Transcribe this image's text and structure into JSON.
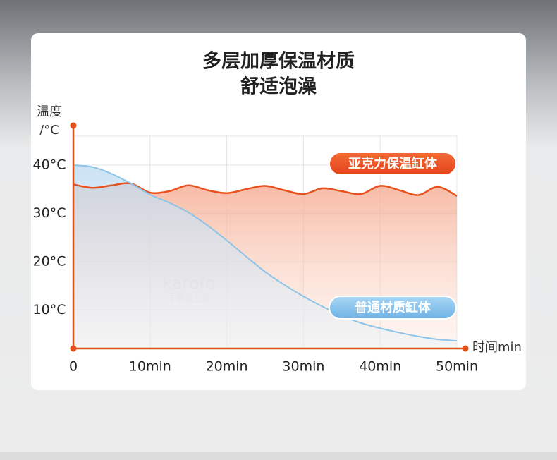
{
  "chart_data": {
    "type": "line",
    "title": "多层加厚保温材质",
    "subtitle": "舒适泡澡",
    "ylabel": [
      "温度",
      "/°C"
    ],
    "xlabel": "时间min",
    "watermark": [
      "karofo",
      "卡罗法卫浴"
    ],
    "x": [
      0,
      2.5,
      5,
      7.5,
      10,
      12.5,
      15,
      17.5,
      20,
      22.5,
      25,
      27.5,
      30,
      32.5,
      35,
      37.5,
      40,
      42.5,
      45,
      47.5,
      50
    ],
    "series": [
      {
        "name": "亚克力保温缸体",
        "color": "#e8501e",
        "values": [
          36,
          35.3,
          35.8,
          36.2,
          34.3,
          34.6,
          35.8,
          34.8,
          34.2,
          35,
          35.7,
          34.8,
          34.0,
          35.2,
          34.6,
          34.0,
          35.7,
          34.8,
          33.8,
          35.5,
          33.6
        ]
      },
      {
        "name": "普通材质缸体",
        "color": "#8cc4e8",
        "values": [
          40,
          39.6,
          38.2,
          36.2,
          33.9,
          32.2,
          30.2,
          27.5,
          24.4,
          21.1,
          17.9,
          15.2,
          12.8,
          10.7,
          8.8,
          7.3,
          6.2,
          5.3,
          4.5,
          3.9,
          3.6
        ]
      }
    ],
    "xlim": [
      0,
      50
    ],
    "xticks": [
      0,
      {
        "value": 10,
        "label": "10min"
      },
      {
        "value": 20,
        "label": "20min"
      },
      {
        "value": 30,
        "label": "30min"
      },
      {
        "value": 40,
        "label": "40min"
      },
      {
        "value": 50,
        "label": "50min"
      }
    ],
    "ylim": [
      2,
      46
    ],
    "yticks": [
      {
        "value": 10,
        "label": "10°C"
      },
      {
        "value": 20,
        "label": "20°C"
      },
      {
        "value": 30,
        "label": "30°C"
      },
      {
        "value": 40,
        "label": "40°C"
      }
    ],
    "grid": true
  }
}
